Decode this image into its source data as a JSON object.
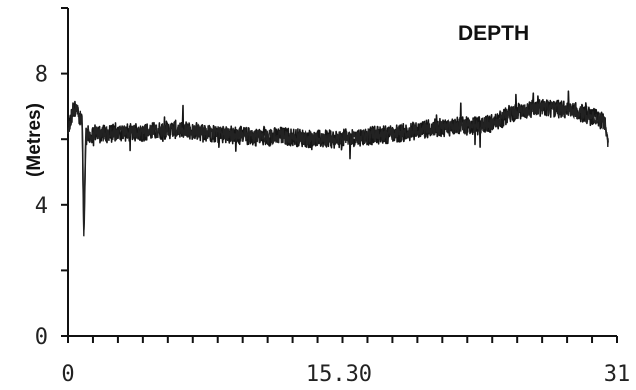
{
  "chart_data": {
    "type": "line",
    "title": "DEPTH",
    "xlabel": "",
    "ylabel": "(Metres)",
    "xlim": [
      0,
      31
    ],
    "ylim": [
      0,
      10
    ],
    "x_ticks": [
      {
        "value": 0,
        "label": "0"
      },
      {
        "value": 15.3,
        "label": "15.30"
      },
      {
        "value": 31,
        "label": "31"
      }
    ],
    "y_ticks": [
      {
        "value": 0,
        "label": "0"
      },
      {
        "value": 4,
        "label": "4"
      },
      {
        "value": 8,
        "label": "8"
      }
    ],
    "grid": false,
    "series": [
      {
        "x": [
          0,
          0.3,
          0.6,
          0.8,
          0.9,
          1.0,
          1.5,
          2,
          3,
          4,
          5,
          6,
          7,
          8,
          9,
          10,
          11,
          12,
          13,
          14,
          15,
          16,
          17,
          18,
          19,
          20,
          21,
          22,
          23,
          24,
          24.5,
          25,
          26,
          27,
          28,
          29,
          30,
          30.3,
          30.5
        ],
        "y": [
          6.3,
          6.9,
          6.85,
          6.5,
          3.0,
          6.1,
          6.2,
          6.15,
          6.2,
          6.2,
          6.25,
          6.3,
          6.25,
          6.2,
          6.15,
          6.1,
          6.05,
          6.1,
          6.05,
          6.0,
          6.0,
          6.05,
          6.1,
          6.15,
          6.2,
          6.3,
          6.35,
          6.4,
          6.4,
          6.5,
          6.6,
          6.8,
          6.9,
          6.95,
          6.9,
          6.8,
          6.6,
          6.5,
          5.9
        ],
        "noise": 0.28
      }
    ]
  }
}
